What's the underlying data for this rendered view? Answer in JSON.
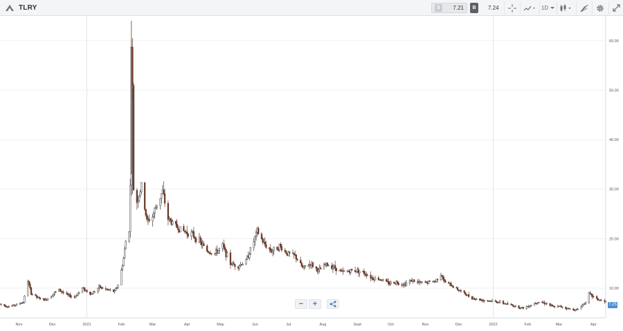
{
  "header": {
    "symbol": "TLRY",
    "sell_label": "S",
    "sell_price": "7.21",
    "buy_label": "B",
    "buy_price": "7.24",
    "interval": "1D",
    "icons": [
      "crosshair-icon",
      "indicators-icon",
      "interval-dropdown",
      "candles-icon",
      "drawing-icon",
      "gear-icon",
      "fullscreen-icon"
    ]
  },
  "controls": {
    "zoom_out": "−",
    "zoom_in": "+",
    "share": "share-icon"
  },
  "last_price_tag": "7.25",
  "colors": {
    "up_candle": "#3a3a3a",
    "down_candle": "#6b3a2a",
    "grid": "#eef0f2",
    "axis_text": "#555555",
    "price_tag": "#4e8fd6"
  },
  "chart_data": {
    "type": "candlestick",
    "title": "",
    "xlabel": "",
    "ylabel": "",
    "ylim": [
      4,
      65
    ],
    "y_ticks": [
      10,
      20,
      30,
      40,
      50,
      60
    ],
    "y_tick_labels": [
      "10.00",
      "20.00",
      "30.00",
      "40.00",
      "50.00",
      "60.00"
    ],
    "x_tick_labels": [
      "Nov",
      "Dec",
      "2021",
      "Feb",
      "Mar",
      "Apr",
      "May",
      "Jun",
      "Jul",
      "Aug",
      "Sept",
      "Oct",
      "Nov",
      "Dec",
      "2022",
      "Feb",
      "Mar",
      "Apr"
    ],
    "x_tick_dates": [
      "2020-11-01",
      "2020-12-01",
      "2021-01-01",
      "2021-02-01",
      "2021-03-01",
      "2021-04-01",
      "2021-05-01",
      "2021-06-01",
      "2021-07-01",
      "2021-08-01",
      "2021-09-01",
      "2021-10-01",
      "2021-11-01",
      "2021-12-01",
      "2022-01-01",
      "2022-02-01",
      "2022-03-01",
      "2022-04-01"
    ],
    "x_range": [
      "2020-10-15",
      "2022-04-12"
    ],
    "series_path": [
      [
        "2020-10-15",
        6.8
      ],
      [
        "2020-10-22",
        6.3
      ],
      [
        "2020-10-29",
        6.6
      ],
      [
        "2020-11-05",
        7.2
      ],
      [
        "2020-11-09",
        11.5
      ],
      [
        "2020-11-12",
        9.0
      ],
      [
        "2020-11-18",
        8.0
      ],
      [
        "2020-11-25",
        7.6
      ],
      [
        "2020-12-02",
        8.9
      ],
      [
        "2020-12-07",
        9.7
      ],
      [
        "2020-12-14",
        8.6
      ],
      [
        "2020-12-21",
        8.2
      ],
      [
        "2020-12-28",
        10.0
      ],
      [
        "2021-01-05",
        8.8
      ],
      [
        "2021-01-12",
        10.2
      ],
      [
        "2021-01-19",
        9.7
      ],
      [
        "2021-01-26",
        9.3
      ],
      [
        "2021-01-30",
        11.2
      ],
      [
        "2021-02-03",
        16.0
      ],
      [
        "2021-02-05",
        19.5
      ],
      [
        "2021-02-08",
        22.0
      ],
      [
        "2021-02-09",
        30.5
      ],
      [
        "2021-02-10",
        60.0
      ],
      [
        "2021-02-11",
        50.0
      ],
      [
        "2021-02-12",
        30.0
      ],
      [
        "2021-02-15",
        27.5
      ],
      [
        "2021-02-19",
        30.5
      ],
      [
        "2021-02-24",
        23.5
      ],
      [
        "2021-03-01",
        24.5
      ],
      [
        "2021-03-05",
        27.0
      ],
      [
        "2021-03-10",
        29.5
      ],
      [
        "2021-03-15",
        24.0
      ],
      [
        "2021-03-22",
        22.5
      ],
      [
        "2021-03-29",
        21.5
      ],
      [
        "2021-04-05",
        21.0
      ],
      [
        "2021-04-12",
        19.5
      ],
      [
        "2021-04-19",
        17.5
      ],
      [
        "2021-04-26",
        17.0
      ],
      [
        "2021-05-03",
        18.5
      ],
      [
        "2021-05-10",
        15.0
      ],
      [
        "2021-05-17",
        14.5
      ],
      [
        "2021-05-24",
        15.5
      ],
      [
        "2021-05-31",
        19.5
      ],
      [
        "2021-06-03",
        21.5
      ],
      [
        "2021-06-09",
        19.0
      ],
      [
        "2021-06-16",
        17.5
      ],
      [
        "2021-06-23",
        18.5
      ],
      [
        "2021-06-30",
        17.0
      ],
      [
        "2021-07-07",
        16.5
      ],
      [
        "2021-07-14",
        14.0
      ],
      [
        "2021-07-21",
        15.0
      ],
      [
        "2021-07-28",
        13.5
      ],
      [
        "2021-08-04",
        14.8
      ],
      [
        "2021-08-11",
        14.3
      ],
      [
        "2021-08-18",
        13.2
      ],
      [
        "2021-08-25",
        13.5
      ],
      [
        "2021-09-01",
        13.6
      ],
      [
        "2021-09-08",
        13.0
      ],
      [
        "2021-09-15",
        12.0
      ],
      [
        "2021-09-22",
        11.8
      ],
      [
        "2021-09-29",
        11.0
      ],
      [
        "2021-10-06",
        11.2
      ],
      [
        "2021-10-13",
        10.8
      ],
      [
        "2021-10-20",
        11.6
      ],
      [
        "2021-10-27",
        11.0
      ],
      [
        "2021-11-03",
        11.2
      ],
      [
        "2021-11-10",
        11.4
      ],
      [
        "2021-11-15",
        13.0
      ],
      [
        "2021-11-18",
        11.3
      ],
      [
        "2021-11-25",
        10.5
      ],
      [
        "2021-12-02",
        9.5
      ],
      [
        "2021-12-09",
        8.5
      ],
      [
        "2021-12-16",
        7.8
      ],
      [
        "2021-12-23",
        7.6
      ],
      [
        "2021-12-30",
        7.4
      ],
      [
        "2022-01-06",
        7.2
      ],
      [
        "2022-01-13",
        6.8
      ],
      [
        "2022-01-20",
        6.4
      ],
      [
        "2022-01-27",
        6.0
      ],
      [
        "2022-02-03",
        6.5
      ],
      [
        "2022-02-10",
        7.3
      ],
      [
        "2022-02-17",
        7.0
      ],
      [
        "2022-02-24",
        6.2
      ],
      [
        "2022-03-03",
        6.3
      ],
      [
        "2022-03-10",
        5.8
      ],
      [
        "2022-03-17",
        5.6
      ],
      [
        "2022-03-24",
        7.0
      ],
      [
        "2022-03-28",
        8.8
      ],
      [
        "2022-04-04",
        7.8
      ],
      [
        "2022-04-11",
        7.25
      ]
    ]
  }
}
